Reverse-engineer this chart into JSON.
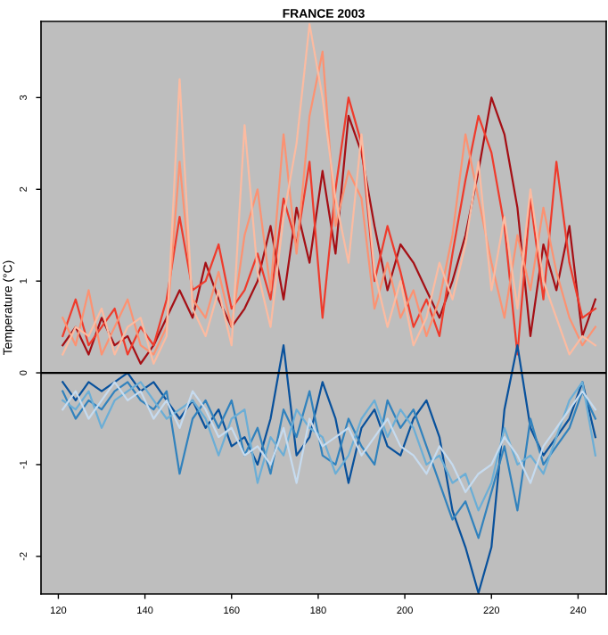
{
  "chart_data": {
    "type": "line",
    "title": "FRANCE 2003",
    "ylabel": "Temperature (°C)",
    "x": [
      121,
      124,
      127,
      130,
      133,
      136,
      139,
      142,
      145,
      148,
      151,
      154,
      157,
      160,
      163,
      166,
      169,
      172,
      175,
      178,
      181,
      184,
      187,
      190,
      193,
      196,
      199,
      202,
      205,
      208,
      211,
      214,
      217,
      220,
      223,
      226,
      229,
      232,
      235,
      238,
      241,
      244
    ],
    "series": [
      {
        "color": "#a50f15",
        "values": [
          0.3,
          0.5,
          0.2,
          0.6,
          0.3,
          0.4,
          0.1,
          0.3,
          0.6,
          0.9,
          0.6,
          1.2,
          0.8,
          0.5,
          0.7,
          1.0,
          1.6,
          0.8,
          1.8,
          1.2,
          2.2,
          1.3,
          2.8,
          2.4,
          1.6,
          0.9,
          1.4,
          1.2,
          0.9,
          0.6,
          1.0,
          1.5,
          2.2,
          3.0,
          2.6,
          1.8,
          0.4,
          1.4,
          0.9,
          1.6,
          0.4,
          0.8
        ]
      },
      {
        "color": "#ef3b2c",
        "values": [
          0.4,
          0.8,
          0.3,
          0.5,
          0.7,
          0.2,
          0.5,
          0.3,
          0.8,
          1.7,
          0.9,
          1.0,
          1.4,
          0.7,
          0.9,
          1.3,
          0.8,
          1.9,
          1.4,
          2.3,
          0.6,
          2.0,
          3.0,
          2.5,
          1.0,
          1.6,
          1.1,
          0.5,
          0.8,
          0.4,
          1.3,
          2.1,
          2.8,
          2.4,
          1.6,
          0.2,
          1.9,
          0.8,
          2.3,
          1.2,
          0.6,
          0.7
        ]
      },
      {
        "color": "#fc9272",
        "values": [
          0.6,
          0.3,
          0.9,
          0.2,
          0.5,
          0.8,
          0.3,
          0.2,
          0.5,
          2.3,
          0.8,
          0.6,
          1.1,
          0.5,
          1.5,
          2.0,
          0.9,
          2.6,
          1.3,
          2.8,
          3.5,
          1.6,
          2.2,
          1.9,
          0.7,
          1.2,
          0.6,
          0.9,
          0.4,
          0.8,
          1.5,
          2.6,
          1.9,
          1.2,
          0.6,
          1.5,
          0.9,
          1.8,
          1.1,
          0.6,
          0.3,
          0.5
        ]
      },
      {
        "color": "#fcbba1",
        "values": [
          0.2,
          0.5,
          0.4,
          0.7,
          0.2,
          0.5,
          0.6,
          0.1,
          0.4,
          3.2,
          0.7,
          0.4,
          0.9,
          0.3,
          2.7,
          1.1,
          0.5,
          1.7,
          2.5,
          3.8,
          3.0,
          1.9,
          1.2,
          2.6,
          1.1,
          0.5,
          1.0,
          0.3,
          0.6,
          1.2,
          0.8,
          1.4,
          2.3,
          0.9,
          1.7,
          0.7,
          2.0,
          1.0,
          0.6,
          0.2,
          0.4,
          0.3
        ]
      },
      {
        "color": "#08519c",
        "values": [
          -0.1,
          -0.3,
          -0.1,
          -0.2,
          -0.1,
          0.0,
          -0.2,
          -0.1,
          -0.3,
          -0.5,
          -0.3,
          -0.6,
          -0.4,
          -0.8,
          -0.7,
          -1.0,
          -0.5,
          0.3,
          -0.9,
          -0.7,
          -0.1,
          -0.5,
          -1.2,
          -0.6,
          -0.4,
          -0.8,
          -0.9,
          -0.5,
          -0.3,
          -0.7,
          -1.5,
          -1.9,
          -2.4,
          -1.9,
          -0.4,
          0.3,
          -0.6,
          -0.9,
          -0.7,
          -0.5,
          -0.1,
          -0.7
        ]
      },
      {
        "color": "#3182bd",
        "values": [
          -0.2,
          -0.5,
          -0.3,
          -0.4,
          -0.2,
          -0.1,
          -0.3,
          -0.4,
          -0.2,
          -1.1,
          -0.5,
          -0.3,
          -0.6,
          -0.3,
          -0.9,
          -0.6,
          -1.1,
          -0.4,
          -0.7,
          -0.2,
          -0.9,
          -1.0,
          -0.5,
          -0.8,
          -1.0,
          -0.3,
          -0.6,
          -0.4,
          -0.8,
          -1.2,
          -1.6,
          -1.4,
          -1.8,
          -1.3,
          -0.8,
          -1.5,
          -0.5,
          -1.0,
          -0.8,
          -0.6,
          -0.2,
          -0.5
        ]
      },
      {
        "color": "#6baed6",
        "values": [
          -0.3,
          -0.4,
          -0.2,
          -0.6,
          -0.3,
          -0.2,
          -0.1,
          -0.3,
          -0.5,
          -0.4,
          -0.3,
          -0.5,
          -0.9,
          -0.5,
          -0.4,
          -1.2,
          -0.7,
          -0.9,
          -0.4,
          -0.6,
          -0.7,
          -1.1,
          -0.9,
          -0.5,
          -0.3,
          -0.7,
          -0.4,
          -0.6,
          -1.0,
          -0.9,
          -1.2,
          -1.1,
          -1.5,
          -1.2,
          -0.6,
          -1.0,
          -0.9,
          -1.1,
          -0.7,
          -0.3,
          -0.1,
          -0.9
        ]
      },
      {
        "color": "#c6dbef",
        "values": [
          -0.4,
          -0.2,
          -0.5,
          -0.3,
          -0.1,
          -0.3,
          -0.2,
          -0.5,
          -0.3,
          -0.6,
          -0.2,
          -0.4,
          -0.7,
          -0.6,
          -0.9,
          -0.8,
          -1.0,
          -0.6,
          -1.2,
          -0.5,
          -0.8,
          -0.7,
          -0.6,
          -0.9,
          -0.7,
          -0.5,
          -0.8,
          -0.9,
          -1.1,
          -0.8,
          -1.0,
          -1.3,
          -1.1,
          -1.0,
          -0.7,
          -0.9,
          -1.2,
          -0.8,
          -0.6,
          -0.4,
          -0.2,
          -0.4
        ]
      }
    ],
    "xlim": [
      116,
      246.5
    ],
    "xticks": [
      120,
      140,
      160,
      180,
      200,
      220,
      240
    ],
    "ylim": [
      -2.41,
      3.83
    ],
    "yticks": [
      -2,
      -1,
      0,
      1,
      2,
      3
    ],
    "ref_lines": [
      {
        "axis": "y",
        "value": 0,
        "color": "#000000"
      }
    ],
    "grid": false,
    "legend": false,
    "marker": "none",
    "line_style": "solid"
  }
}
